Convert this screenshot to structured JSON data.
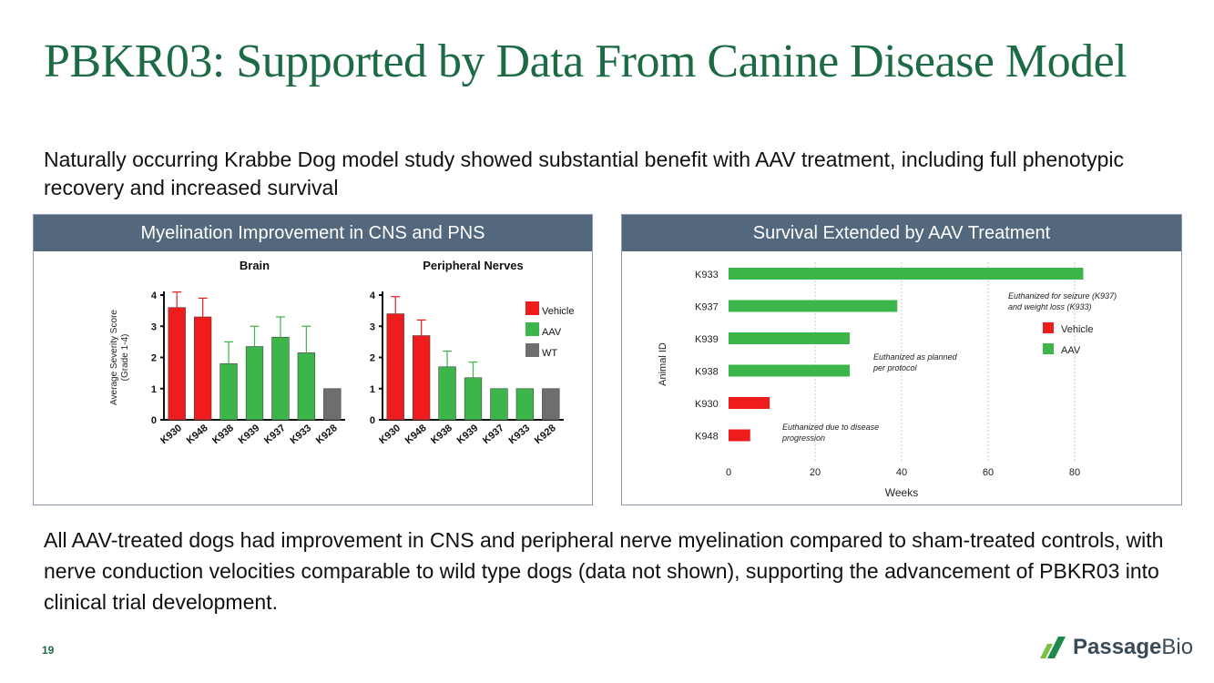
{
  "title": "PBKR03: Supported by Data From Canine Disease Model",
  "intro": "Naturally occurring Krabbe Dog model study showed substantial benefit with AAV treatment, including full phenotypic recovery and increased survival",
  "left_panel": {
    "header": "Myelination Improvement in CNS and PNS"
  },
  "right_panel": {
    "header": "Survival Extended by AAV Treatment"
  },
  "conclusion": "All AAV-treated dogs had improvement in CNS and peripheral nerve myelination compared to sham-treated controls, with nerve conduction velocities comparable to wild type dogs (data not shown), supporting the advancement of PBKR03 into clinical trial development.",
  "page_number": "19",
  "logo": {
    "part1": "Passage",
    "part2": "Bio"
  },
  "colors": {
    "vehicle": "#ee1c1c",
    "aav": "#3cb54a",
    "wt": "#6e6e6e",
    "title_green": "#1d6b44",
    "header_bg": "#53687d"
  },
  "chart_data": [
    {
      "type": "bar",
      "title": "Brain",
      "ylabel": "Average Severity Score (Grade 1-4)",
      "ylim": [
        0,
        4
      ],
      "yticks": [
        0,
        1,
        2,
        3,
        4
      ],
      "categories": [
        "K930",
        "K948",
        "K938",
        "K939",
        "K937",
        "K933",
        "K928"
      ],
      "groups": [
        "Vehicle",
        "Vehicle",
        "AAV",
        "AAV",
        "AAV",
        "AAV",
        "WT"
      ],
      "values": [
        3.6,
        3.3,
        1.8,
        2.35,
        2.65,
        2.15,
        1.0
      ],
      "error_upper": [
        4.1,
        3.9,
        2.5,
        3.0,
        3.3,
        3.0,
        null
      ],
      "legend": [
        "Vehicle",
        "AAV",
        "WT"
      ]
    },
    {
      "type": "bar",
      "title": "Peripheral Nerves",
      "ylim": [
        0,
        4
      ],
      "yticks": [
        0,
        1,
        2,
        3,
        4
      ],
      "categories": [
        "K930",
        "K948",
        "K938",
        "K939",
        "K937",
        "K933",
        "K928"
      ],
      "groups": [
        "Vehicle",
        "Vehicle",
        "AAV",
        "AAV",
        "AAV",
        "AAV",
        "WT"
      ],
      "values": [
        3.4,
        2.7,
        1.7,
        1.35,
        1.0,
        1.0,
        1.0
      ],
      "error_upper": [
        3.95,
        3.2,
        2.2,
        1.85,
        null,
        null,
        null
      ]
    },
    {
      "type": "bar",
      "orientation": "horizontal",
      "xlabel": "Weeks",
      "ylabel": "Animal ID",
      "xlim": [
        0,
        90
      ],
      "xticks": [
        0,
        20,
        40,
        60,
        80
      ],
      "categories": [
        "K933",
        "K937",
        "K939",
        "K938",
        "K930",
        "K948"
      ],
      "groups": [
        "AAV",
        "AAV",
        "AAV",
        "AAV",
        "Vehicle",
        "Vehicle"
      ],
      "values": [
        82,
        39,
        28,
        28,
        9.5,
        5
      ],
      "legend": [
        "Vehicle",
        "AAV"
      ],
      "annotations": [
        {
          "line1": "Euthanized for seizure (K937)",
          "line2": "and  weight loss (K933)"
        },
        {
          "line1": "Euthanized as planned",
          "line2": "per protocol"
        },
        {
          "line1": "Euthanized due to disease",
          "line2": "progression"
        }
      ]
    }
  ]
}
